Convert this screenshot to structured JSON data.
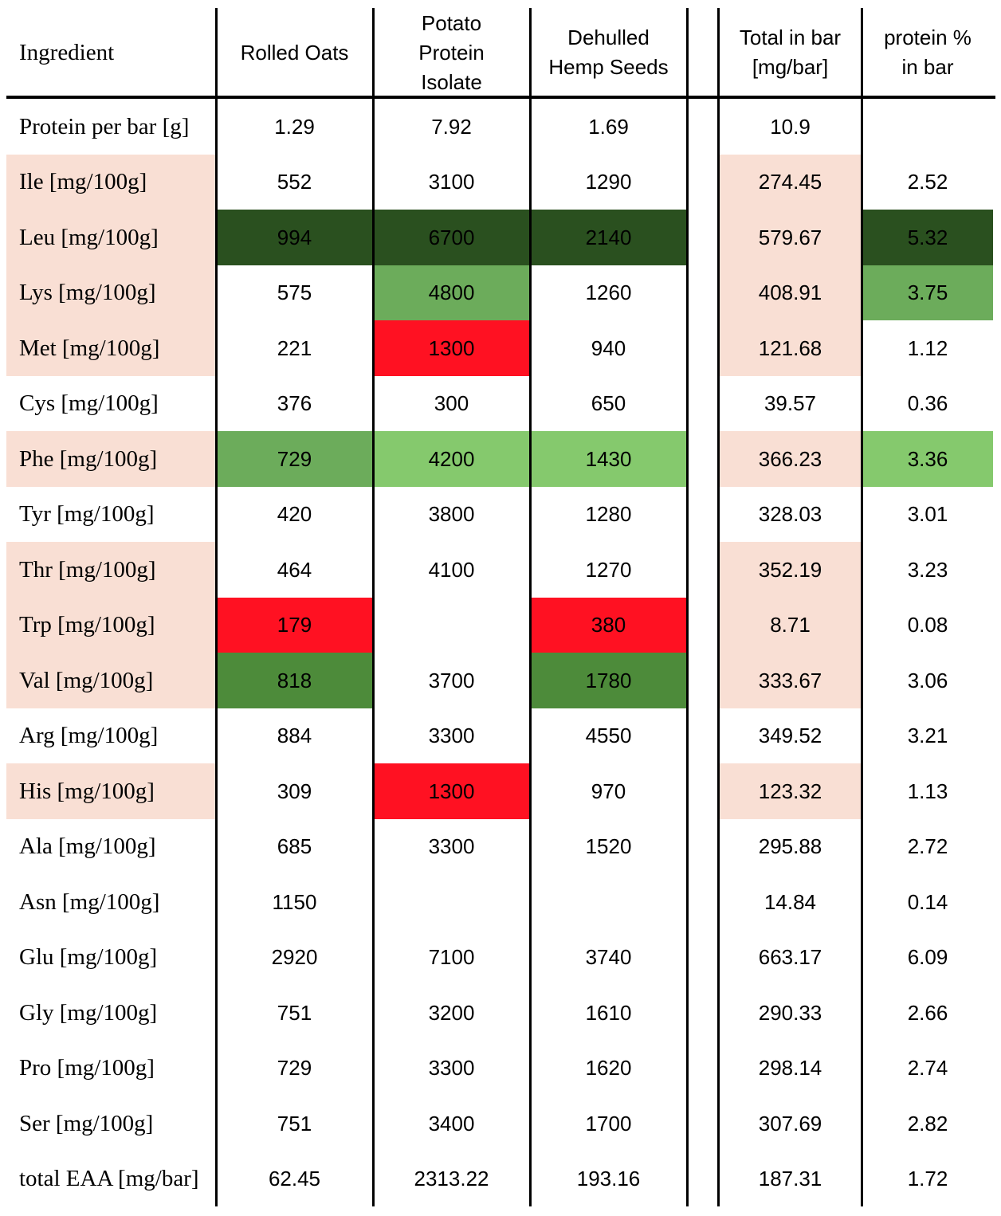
{
  "colors": {
    "dark_green": "#2A501F",
    "medium_green": "#4D8B3A",
    "green": "#6CAC5B",
    "light_green": "#85C96D",
    "red": "#FF1122",
    "peach": "#F9DFD4"
  },
  "header": [
    "Ingredient",
    "Rolled Oats",
    "Potato Protein Isolate",
    "Dehulled Hemp Seeds",
    "Total in bar [mg/bar]",
    "protein % in bar"
  ],
  "rows": [
    {
      "label": "Protein per bar [g]",
      "oats": "1.29",
      "potato": "7.92",
      "hemp": "1.69",
      "total": "10.9",
      "pct": "",
      "fill": {
        "label": "",
        "oats": "",
        "potato": "",
        "hemp": "",
        "total": "",
        "pct": ""
      }
    },
    {
      "label": "Ile [mg/100g]",
      "oats": "552",
      "potato": "3100",
      "hemp": "1290",
      "total": "274.45",
      "pct": "2.52",
      "fill": {
        "label": "peach",
        "oats": "",
        "potato": "",
        "hemp": "",
        "total": "peach",
        "pct": ""
      }
    },
    {
      "label": "Leu [mg/100g]",
      "oats": "994",
      "potato": "6700",
      "hemp": "2140",
      "total": "579.67",
      "pct": "5.32",
      "fill": {
        "label": "peach",
        "oats": "dark_green",
        "potato": "dark_green",
        "hemp": "dark_green",
        "total": "peach",
        "pct": "dark_green"
      }
    },
    {
      "label": "Lys [mg/100g]",
      "oats": "575",
      "potato": "4800",
      "hemp": "1260",
      "total": "408.91",
      "pct": "3.75",
      "fill": {
        "label": "peach",
        "oats": "",
        "potato": "green",
        "hemp": "",
        "total": "peach",
        "pct": "green"
      }
    },
    {
      "label": "Met [mg/100g]",
      "oats": "221",
      "potato": "1300",
      "hemp": "940",
      "total": "121.68",
      "pct": "1.12",
      "fill": {
        "label": "peach",
        "oats": "",
        "potato": "red",
        "hemp": "",
        "total": "peach",
        "pct": ""
      }
    },
    {
      "label": "Cys [mg/100g]",
      "oats": "376",
      "potato": "300",
      "hemp": "650",
      "total": "39.57",
      "pct": "0.36",
      "fill": {
        "label": "",
        "oats": "",
        "potato": "",
        "hemp": "",
        "total": "",
        "pct": ""
      }
    },
    {
      "label": "Phe [mg/100g]",
      "oats": "729",
      "potato": "4200",
      "hemp": "1430",
      "total": "366.23",
      "pct": "3.36",
      "fill": {
        "label": "peach",
        "oats": "green",
        "potato": "light_green",
        "hemp": "light_green",
        "total": "peach",
        "pct": "light_green"
      }
    },
    {
      "label": "Tyr [mg/100g]",
      "oats": "420",
      "potato": "3800",
      "hemp": "1280",
      "total": "328.03",
      "pct": "3.01",
      "fill": {
        "label": "",
        "oats": "",
        "potato": "",
        "hemp": "",
        "total": "",
        "pct": ""
      }
    },
    {
      "label": "Thr [mg/100g]",
      "oats": "464",
      "potato": "4100",
      "hemp": "1270",
      "total": "352.19",
      "pct": "3.23",
      "fill": {
        "label": "peach",
        "oats": "",
        "potato": "",
        "hemp": "",
        "total": "peach",
        "pct": ""
      }
    },
    {
      "label": "Trp [mg/100g]",
      "oats": "179",
      "potato": "",
      "hemp": "380",
      "total": "8.71",
      "pct": "0.08",
      "fill": {
        "label": "peach",
        "oats": "red",
        "potato": "",
        "hemp": "red",
        "total": "peach",
        "pct": ""
      }
    },
    {
      "label": "Val [mg/100g]",
      "oats": "818",
      "potato": "3700",
      "hemp": "1780",
      "total": "333.67",
      "pct": "3.06",
      "fill": {
        "label": "peach",
        "oats": "medium_green",
        "potato": "",
        "hemp": "medium_green",
        "total": "peach",
        "pct": ""
      }
    },
    {
      "label": "Arg [mg/100g]",
      "oats": "884",
      "potato": "3300",
      "hemp": "4550",
      "total": "349.52",
      "pct": "3.21",
      "fill": {
        "label": "",
        "oats": "",
        "potato": "",
        "hemp": "",
        "total": "",
        "pct": ""
      }
    },
    {
      "label": "His [mg/100g]",
      "oats": "309",
      "potato": "1300",
      "hemp": "970",
      "total": "123.32",
      "pct": "1.13",
      "fill": {
        "label": "peach",
        "oats": "",
        "potato": "red",
        "hemp": "",
        "total": "peach",
        "pct": ""
      }
    },
    {
      "label": "Ala [mg/100g]",
      "oats": "685",
      "potato": "3300",
      "hemp": "1520",
      "total": "295.88",
      "pct": "2.72",
      "fill": {
        "label": "",
        "oats": "",
        "potato": "",
        "hemp": "",
        "total": "",
        "pct": ""
      }
    },
    {
      "label": "Asn [mg/100g]",
      "oats": "1150",
      "potato": "",
      "hemp": "",
      "total": "14.84",
      "pct": "0.14",
      "fill": {
        "label": "",
        "oats": "",
        "potato": "",
        "hemp": "",
        "total": "",
        "pct": ""
      }
    },
    {
      "label": "Glu [mg/100g]",
      "oats": "2920",
      "potato": "7100",
      "hemp": "3740",
      "total": "663.17",
      "pct": "6.09",
      "fill": {
        "label": "",
        "oats": "",
        "potato": "",
        "hemp": "",
        "total": "",
        "pct": ""
      }
    },
    {
      "label": "Gly [mg/100g]",
      "oats": "751",
      "potato": "3200",
      "hemp": "1610",
      "total": "290.33",
      "pct": "2.66",
      "fill": {
        "label": "",
        "oats": "",
        "potato": "",
        "hemp": "",
        "total": "",
        "pct": ""
      }
    },
    {
      "label": "Pro [mg/100g]",
      "oats": "729",
      "potato": "3300",
      "hemp": "1620",
      "total": "298.14",
      "pct": "2.74",
      "fill": {
        "label": "",
        "oats": "",
        "potato": "",
        "hemp": "",
        "total": "",
        "pct": ""
      }
    },
    {
      "label": "Ser [mg/100g]",
      "oats": "751",
      "potato": "3400",
      "hemp": "1700",
      "total": "307.69",
      "pct": "2.82",
      "fill": {
        "label": "",
        "oats": "",
        "potato": "",
        "hemp": "",
        "total": "",
        "pct": ""
      }
    },
    {
      "label": "total EAA [mg/bar]",
      "oats": "62.45",
      "potato": "2313.22",
      "hemp": "193.16",
      "total": "187.31",
      "pct": "1.72",
      "fill": {
        "label": "",
        "oats": "",
        "potato": "",
        "hemp": "",
        "total": "",
        "pct": ""
      }
    }
  ]
}
